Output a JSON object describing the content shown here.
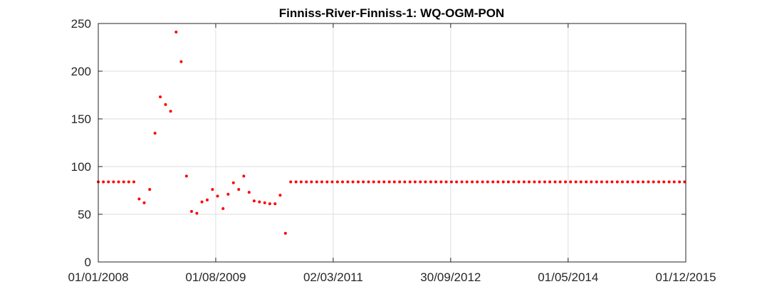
{
  "chart_data": {
    "type": "scatter",
    "title": "Finniss-River-Finniss-1: WQ-OGM-PON",
    "xlabel": "",
    "ylabel": "",
    "x_ticks": [
      "01/01/2008",
      "01/08/2009",
      "02/03/2011",
      "30/09/2012",
      "01/05/2014",
      "01/12/2015"
    ],
    "xlim": [
      "01/01/2008",
      "01/12/2015"
    ],
    "ylim": [
      0,
      250
    ],
    "y_ticks": [
      0,
      50,
      100,
      150,
      200,
      250
    ],
    "grid": true,
    "marker_color": "#ff0000",
    "series": [
      {
        "points": [
          [
            "2008-01-01",
            84
          ],
          [
            "2008-01-26",
            84
          ],
          [
            "2008-02-20",
            84
          ],
          [
            "2008-03-16",
            84
          ],
          [
            "2008-04-10",
            84
          ],
          [
            "2008-05-05",
            84
          ],
          [
            "2008-05-30",
            84
          ],
          [
            "2008-06-24",
            84
          ],
          [
            "2008-07-20",
            66
          ],
          [
            "2008-08-14",
            62
          ],
          [
            "2008-09-10",
            76
          ],
          [
            "2008-10-06",
            135
          ],
          [
            "2008-11-01",
            173
          ],
          [
            "2008-11-27",
            165
          ],
          [
            "2008-12-22",
            158
          ],
          [
            "2009-01-18",
            241
          ],
          [
            "2009-02-12",
            210
          ],
          [
            "2009-03-10",
            90
          ],
          [
            "2009-04-04",
            53
          ],
          [
            "2009-04-30",
            51
          ],
          [
            "2009-05-25",
            63
          ],
          [
            "2009-06-20",
            65
          ],
          [
            "2009-07-16",
            76
          ],
          [
            "2009-08-10",
            69
          ],
          [
            "2009-09-06",
            56
          ],
          [
            "2009-10-01",
            71
          ],
          [
            "2009-10-27",
            83
          ],
          [
            "2009-11-22",
            76
          ],
          [
            "2009-12-17",
            90
          ],
          [
            "2010-01-12",
            73
          ],
          [
            "2010-02-06",
            64
          ],
          [
            "2010-03-04",
            63
          ],
          [
            "2010-03-30",
            62
          ],
          [
            "2010-04-24",
            61
          ],
          [
            "2010-05-20",
            61
          ],
          [
            "2010-06-14",
            70
          ],
          [
            "2010-07-10",
            30
          ],
          [
            "2010-08-05",
            84
          ],
          [
            "2010-08-31",
            84
          ],
          [
            "2010-09-25",
            84
          ],
          [
            "2010-10-21",
            84
          ],
          [
            "2010-11-15",
            84
          ],
          [
            "2010-12-11",
            84
          ],
          [
            "2011-01-05",
            84
          ],
          [
            "2011-01-31",
            84
          ],
          [
            "2011-02-25",
            84
          ],
          [
            "2011-03-23",
            84
          ],
          [
            "2011-04-17",
            84
          ],
          [
            "2011-05-13",
            84
          ],
          [
            "2011-06-07",
            84
          ],
          [
            "2011-07-03",
            84
          ],
          [
            "2011-07-28",
            84
          ],
          [
            "2011-08-23",
            84
          ],
          [
            "2011-09-17",
            84
          ],
          [
            "2011-10-13",
            84
          ],
          [
            "2011-11-07",
            84
          ],
          [
            "2011-12-03",
            84
          ],
          [
            "2011-12-28",
            84
          ],
          [
            "2012-01-23",
            84
          ],
          [
            "2012-02-17",
            84
          ],
          [
            "2012-03-14",
            84
          ],
          [
            "2012-04-08",
            84
          ],
          [
            "2012-05-04",
            84
          ],
          [
            "2012-05-29",
            84
          ],
          [
            "2012-06-24",
            84
          ],
          [
            "2012-07-19",
            84
          ],
          [
            "2012-08-14",
            84
          ],
          [
            "2012-09-08",
            84
          ],
          [
            "2012-10-04",
            84
          ],
          [
            "2012-10-29",
            84
          ],
          [
            "2012-11-24",
            84
          ],
          [
            "2012-12-19",
            84
          ],
          [
            "2013-01-14",
            84
          ],
          [
            "2013-02-08",
            84
          ],
          [
            "2013-03-06",
            84
          ],
          [
            "2013-03-31",
            84
          ],
          [
            "2013-04-26",
            84
          ],
          [
            "2013-05-21",
            84
          ],
          [
            "2013-06-16",
            84
          ],
          [
            "2013-07-11",
            84
          ],
          [
            "2013-08-06",
            84
          ],
          [
            "2013-08-31",
            84
          ],
          [
            "2013-09-26",
            84
          ],
          [
            "2013-10-21",
            84
          ],
          [
            "2013-11-16",
            84
          ],
          [
            "2013-12-11",
            84
          ],
          [
            "2014-01-06",
            84
          ],
          [
            "2014-01-31",
            84
          ],
          [
            "2014-02-26",
            84
          ],
          [
            "2014-03-23",
            84
          ],
          [
            "2014-04-18",
            84
          ],
          [
            "2014-05-13",
            84
          ],
          [
            "2014-06-08",
            84
          ],
          [
            "2014-07-03",
            84
          ],
          [
            "2014-07-29",
            84
          ],
          [
            "2014-08-23",
            84
          ],
          [
            "2014-09-18",
            84
          ],
          [
            "2014-10-13",
            84
          ],
          [
            "2014-11-08",
            84
          ],
          [
            "2014-12-03",
            84
          ],
          [
            "2014-12-29",
            84
          ],
          [
            "2015-01-23",
            84
          ],
          [
            "2015-02-18",
            84
          ],
          [
            "2015-03-15",
            84
          ],
          [
            "2015-04-10",
            84
          ],
          [
            "2015-05-05",
            84
          ],
          [
            "2015-05-31",
            84
          ],
          [
            "2015-06-25",
            84
          ],
          [
            "2015-07-21",
            84
          ],
          [
            "2015-08-15",
            84
          ],
          [
            "2015-09-10",
            84
          ],
          [
            "2015-10-05",
            84
          ],
          [
            "2015-10-31",
            84
          ],
          [
            "2015-11-25",
            84
          ]
        ]
      }
    ]
  }
}
